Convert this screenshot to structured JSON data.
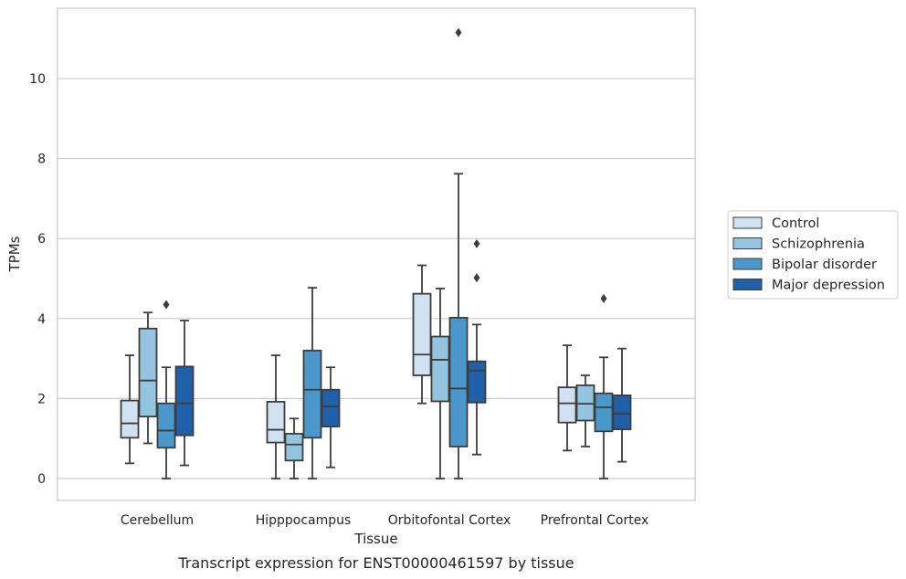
{
  "chart_data": {
    "type": "box",
    "caption": "Transcript expression for ENST00000461597 by tissue",
    "xlabel": "Tissue",
    "ylabel": "TPMs",
    "ylim": [
      -0.55,
      11.75
    ],
    "yticks": [
      0,
      2,
      4,
      6,
      8,
      10
    ],
    "grid": "horizontal",
    "legend_position": "right",
    "categories": [
      "Cerebellum",
      "Hipppocampus",
      "Orbitofontal Cortex",
      "Prefrontal Cortex"
    ],
    "series": [
      {
        "name": "Control",
        "color": "#d0e1f2",
        "boxes": [
          {
            "whislo": 0.38,
            "q1": 1.02,
            "med": 1.38,
            "q3": 1.95,
            "whishi": 3.08,
            "fliers": []
          },
          {
            "whislo": 0.0,
            "q1": 0.9,
            "med": 1.22,
            "q3": 1.92,
            "whishi": 3.08,
            "fliers": []
          },
          {
            "whislo": 1.88,
            "q1": 2.58,
            "med": 3.1,
            "q3": 4.62,
            "whishi": 5.33,
            "fliers": []
          },
          {
            "whislo": 0.7,
            "q1": 1.4,
            "med": 1.88,
            "q3": 2.28,
            "whishi": 3.33,
            "fliers": []
          }
        ]
      },
      {
        "name": "Schizophrenia",
        "color": "#94c4df",
        "boxes": [
          {
            "whislo": 0.88,
            "q1": 1.55,
            "med": 2.45,
            "q3": 3.75,
            "whishi": 4.15,
            "fliers": []
          },
          {
            "whislo": 0.0,
            "q1": 0.45,
            "med": 0.85,
            "q3": 1.12,
            "whishi": 1.5,
            "fliers": []
          },
          {
            "whislo": 0.0,
            "q1": 1.93,
            "med": 2.97,
            "q3": 3.55,
            "whishi": 4.75,
            "fliers": []
          },
          {
            "whislo": 0.8,
            "q1": 1.45,
            "med": 1.87,
            "q3": 2.33,
            "whishi": 2.58,
            "fliers": []
          }
        ]
      },
      {
        "name": "Bipolar disorder",
        "color": "#4a98c9",
        "boxes": [
          {
            "whislo": 0.0,
            "q1": 0.77,
            "med": 1.2,
            "q3": 1.88,
            "whishi": 2.78,
            "fliers": [
              4.35
            ]
          },
          {
            "whislo": 0.0,
            "q1": 1.02,
            "med": 2.22,
            "q3": 3.2,
            "whishi": 4.77,
            "fliers": []
          },
          {
            "whislo": 0.0,
            "q1": 0.8,
            "med": 2.25,
            "q3": 4.02,
            "whishi": 7.62,
            "fliers": [
              11.15
            ]
          },
          {
            "whislo": 0.0,
            "q1": 1.18,
            "med": 1.78,
            "q3": 2.13,
            "whishi": 3.03,
            "fliers": [
              4.5
            ]
          }
        ]
      },
      {
        "name": "Major depression",
        "color": "#2060a8",
        "boxes": [
          {
            "whislo": 0.33,
            "q1": 1.08,
            "med": 1.88,
            "q3": 2.8,
            "whishi": 3.95,
            "fliers": []
          },
          {
            "whislo": 0.28,
            "q1": 1.3,
            "med": 1.8,
            "q3": 2.22,
            "whishi": 2.78,
            "fliers": []
          },
          {
            "whislo": 0.6,
            "q1": 1.9,
            "med": 2.7,
            "q3": 2.93,
            "whishi": 3.85,
            "fliers": [
              5.02,
              5.87
            ]
          },
          {
            "whislo": 0.42,
            "q1": 1.23,
            "med": 1.62,
            "q3": 2.08,
            "whishi": 3.25,
            "fliers": []
          }
        ]
      }
    ]
  }
}
